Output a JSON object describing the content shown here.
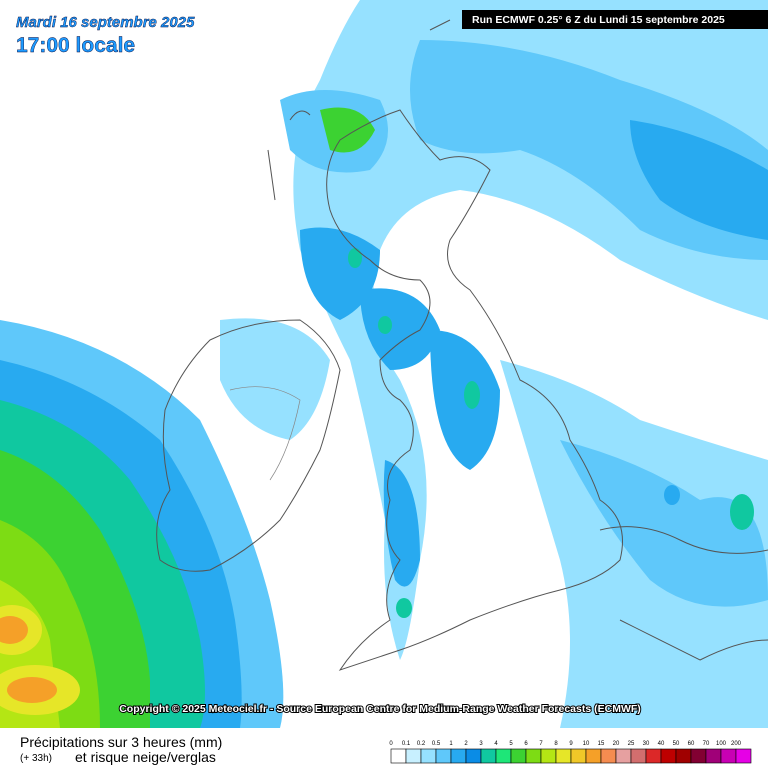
{
  "header": {
    "date": "Mardi 16 septembre 2025",
    "time": "17:00 locale",
    "run": "Run ECMWF 0.25° 6 Z du Lundi 15 septembre 2025"
  },
  "copyright": "Copyright © 2025 Meteociel.fr - Source European Centre for Medium-Range Weather Forecasts (ECMWF)",
  "legend": {
    "title": "Précipitations sur 3 heures (mm)",
    "lead": "(+ 33h)",
    "subtitle": "et risque neige/verglas",
    "labels": [
      "0",
      "0.1",
      "0.2",
      "0.5",
      "1",
      "2",
      "3",
      "4",
      "5",
      "6",
      "7",
      "8",
      "9",
      "10",
      "15",
      "20",
      "25",
      "30",
      "40",
      "50",
      "60",
      "70",
      "100",
      "200"
    ],
    "colors": [
      "#ffffff",
      "#c8f0ff",
      "#96e1ff",
      "#5fc8fa",
      "#28aaf0",
      "#0a8ce6",
      "#10c8a0",
      "#1ee678",
      "#3cd232",
      "#7ddc14",
      "#b4e614",
      "#e6e628",
      "#f0c828",
      "#f5a028",
      "#f58c50",
      "#e6a0a0",
      "#d26e6e",
      "#dc2828",
      "#be0000",
      "#a00000",
      "#820032",
      "#a00078",
      "#c800b4",
      "#e600e6"
    ]
  }
}
